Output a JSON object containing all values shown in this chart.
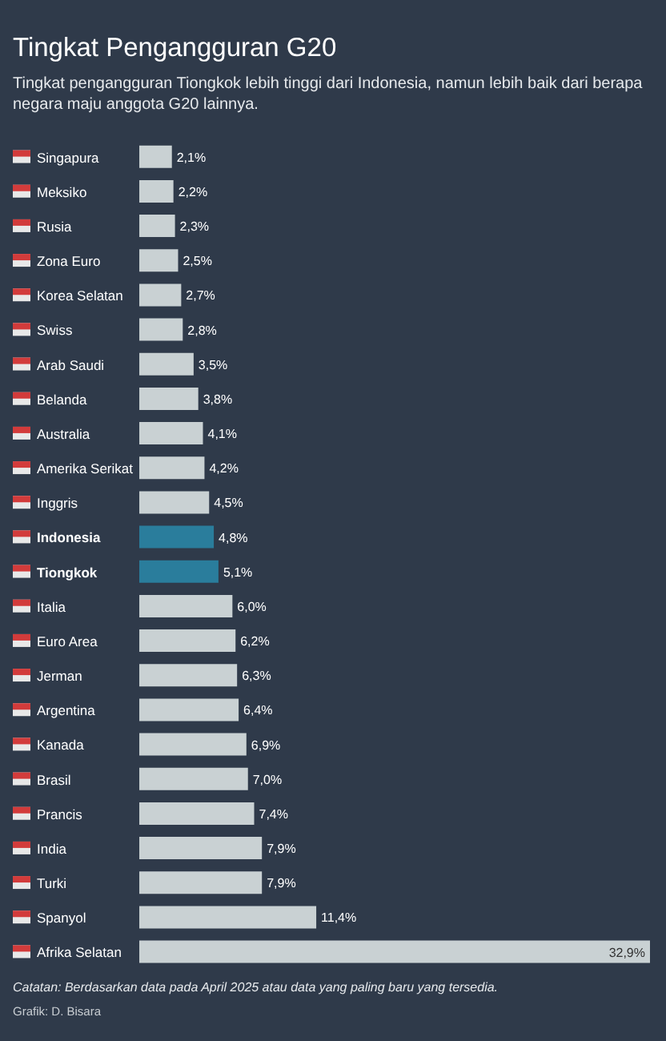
{
  "chart_data": {
    "type": "bar",
    "orientation": "horizontal",
    "title": "Tingkat Pengangguran G20",
    "subtitle": "Tingkat pengangguran Tiongkok lebih tinggi dari Indonesia, namun lebih baik dari berapa negara maju anggota G20 lainnya.",
    "categories": [
      "Singapura",
      "Meksiko",
      "Rusia",
      "Zona Euro",
      "Korea Selatan",
      "Swiss",
      "Arab Saudi",
      "Belanda",
      "Australia",
      "Amerika Serikat",
      "Inggris",
      "Indonesia",
      "Tiongkok",
      "Italia",
      "Euro Area",
      "Jerman",
      "Argentina",
      "Kanada",
      "Brasil",
      "Prancis",
      "India",
      "Turki",
      "Spanyol",
      "Afrika Selatan"
    ],
    "values": [
      2.1,
      2.2,
      2.3,
      2.5,
      2.7,
      2.8,
      3.5,
      3.8,
      4.1,
      4.2,
      4.5,
      4.8,
      5.1,
      6.0,
      6.2,
      6.3,
      6.4,
      6.9,
      7.0,
      7.4,
      7.9,
      7.9,
      11.4,
      32.9
    ],
    "value_labels": [
      "2,1%",
      "2,2%",
      "2,3%",
      "2,5%",
      "2,7%",
      "2,8%",
      "3,5%",
      "3,8%",
      "4,1%",
      "4,2%",
      "4,5%",
      "4,8%",
      "5,1%",
      "6,0%",
      "6,2%",
      "6,3%",
      "6,4%",
      "6,9%",
      "7,0%",
      "7,4%",
      "7,9%",
      "7,9%",
      "11,4%",
      "32,9%"
    ],
    "colors": [
      "#c9d1d3",
      "#c9d1d3",
      "#c9d1d3",
      "#c9d1d3",
      "#c9d1d3",
      "#c9d1d3",
      "#c9d1d3",
      "#c9d1d3",
      "#c9d1d3",
      "#c9d1d3",
      "#c9d1d3",
      "#2a7d9c",
      "#2a7d9c",
      "#c9d1d3",
      "#c9d1d3",
      "#c9d1d3",
      "#c9d1d3",
      "#c9d1d3",
      "#c9d1d3",
      "#c9d1d3",
      "#c9d1d3",
      "#c9d1d3",
      "#c9d1d3",
      "#c9d1d3"
    ],
    "annotations": [
      "Catatan: Berdasarkan data pada April 2025 atau data yang paling baru yang tersedia.",
      "Grafik: D. Bisara"
    ],
    "grid": false,
    "legend": false
  }
}
